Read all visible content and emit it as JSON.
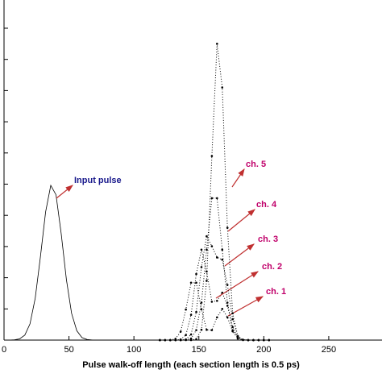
{
  "chart_data": {
    "type": "line",
    "xlabel": "Pulse walk-off length (each section length is 0.5 ps)",
    "xlim": [
      0,
      291
    ],
    "xticks": [
      0,
      50,
      100,
      150,
      200,
      250
    ],
    "ylim": [
      0,
      10
    ],
    "yticks": [
      0,
      1,
      2,
      3,
      4,
      5,
      6,
      7,
      8,
      9,
      10
    ],
    "series": [
      {
        "name": "Input pulse",
        "color": "#1a1a8c",
        "style": "solid",
        "x": [
          0,
          4,
          8,
          12,
          16,
          20,
          24,
          28,
          32,
          36,
          40,
          44,
          48,
          52,
          56,
          60,
          64,
          68,
          72,
          76,
          80
        ],
        "values": [
          0,
          0.001,
          0.007,
          0.038,
          0.16,
          0.52,
          1.34,
          2.66,
          4.11,
          4.96,
          4.66,
          3.42,
          1.94,
          0.86,
          0.3,
          0.08,
          0.017,
          0.003,
          0,
          0,
          0
        ]
      },
      {
        "name": "ch. 1",
        "color": "#c0006a",
        "style": "dotted",
        "x": [
          120,
          124,
          128,
          132,
          136,
          140,
          144,
          148,
          152,
          156,
          160,
          164,
          168,
          172,
          176,
          180,
          184,
          188,
          192,
          196,
          200,
          204
        ],
        "values": [
          0,
          0,
          0,
          0.04,
          0.27,
          0.98,
          1.84,
          1.84,
          0.99,
          0.33,
          0.32,
          0.73,
          1.0,
          0.73,
          0.28,
          0.06,
          0.01,
          0,
          0,
          0,
          0,
          0
        ]
      },
      {
        "name": "ch. 2",
        "color": "#c0006a",
        "style": "dotted",
        "x": [
          120,
          124,
          128,
          132,
          136,
          140,
          144,
          148,
          152,
          156,
          160,
          164,
          168,
          172,
          176,
          180,
          184,
          188,
          192,
          196,
          200,
          204
        ],
        "values": [
          0,
          0,
          0,
          0,
          0.02,
          0.16,
          0.81,
          2.12,
          2.9,
          2.2,
          1.23,
          1.26,
          1.52,
          1.1,
          0.42,
          0.08,
          0.01,
          0,
          0,
          0,
          0,
          0
        ]
      },
      {
        "name": "ch. 3",
        "color": "#c0006a",
        "style": "dotted",
        "x": [
          120,
          124,
          128,
          132,
          136,
          140,
          144,
          148,
          152,
          156,
          160,
          164,
          168,
          172,
          176,
          180,
          184,
          188,
          192,
          196,
          200,
          204
        ],
        "values": [
          0,
          0,
          0,
          0,
          0,
          0.02,
          0.18,
          0.9,
          2.34,
          3.33,
          3.01,
          2.65,
          2.58,
          1.77,
          0.67,
          0.13,
          0.01,
          0,
          0,
          0,
          0,
          0
        ]
      },
      {
        "name": "ch. 4",
        "color": "#c0006a",
        "style": "dotted",
        "x": [
          120,
          124,
          128,
          132,
          136,
          140,
          144,
          148,
          152,
          156,
          160,
          164,
          168,
          172,
          176,
          180,
          184,
          188,
          192,
          196,
          200,
          204
        ],
        "values": [
          0,
          0,
          0,
          0,
          0,
          0.01,
          0.05,
          0.32,
          1.2,
          2.9,
          4.55,
          4.55,
          2.9,
          1.2,
          0.32,
          0.05,
          0.01,
          0,
          0,
          0,
          0,
          0
        ]
      },
      {
        "name": "ch. 5",
        "color": "#c0006a",
        "style": "dotted",
        "x": [
          120,
          124,
          128,
          132,
          136,
          140,
          144,
          148,
          152,
          156,
          160,
          164,
          168,
          172,
          176,
          180,
          184,
          188,
          192,
          196,
          200,
          204
        ],
        "values": [
          0,
          0,
          0,
          0,
          0,
          0,
          0,
          0.03,
          0.33,
          1.9,
          5.9,
          9.5,
          8.1,
          3.6,
          0.86,
          0.11,
          0,
          0,
          0,
          0,
          0,
          0
        ]
      }
    ]
  }
}
